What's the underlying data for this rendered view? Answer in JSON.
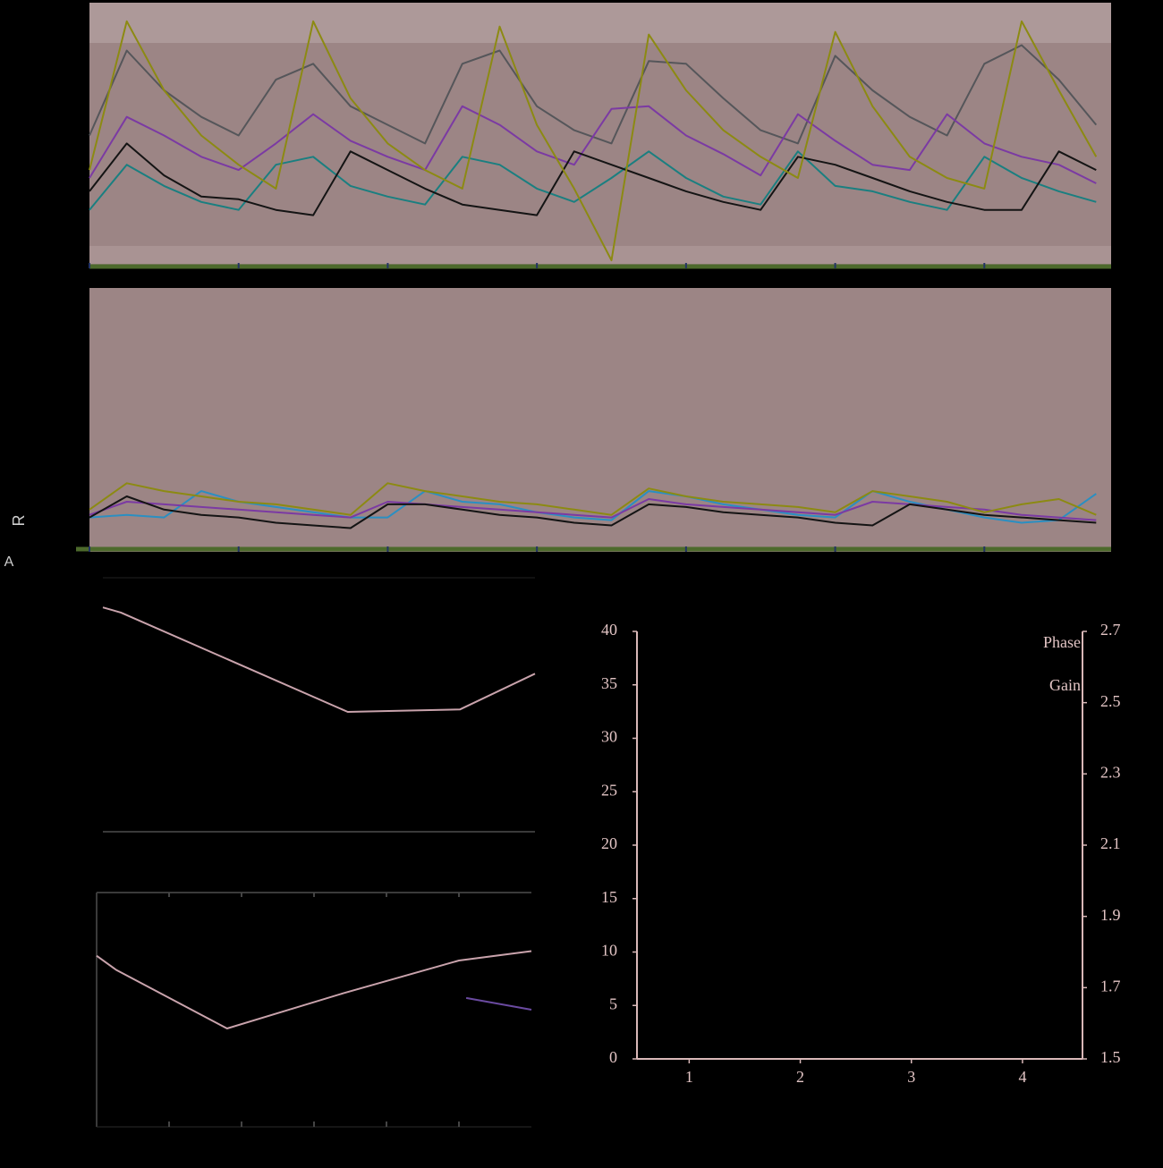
{
  "side_labels": [
    "R",
    "A"
  ],
  "chart_data": [
    {
      "type": "line",
      "xlim": [
        0,
        6.85
      ],
      "ylim": [
        0,
        100
      ],
      "xticks": [
        0,
        1,
        2,
        3,
        4,
        5,
        6
      ],
      "x": [
        0,
        0.25,
        0.5,
        0.75,
        1,
        1.25,
        1.5,
        1.75,
        2,
        2.25,
        2.5,
        2.75,
        3,
        3.25,
        3.5,
        3.75,
        4,
        4.25,
        4.5,
        4.75,
        5,
        5.25,
        5.5,
        5.75,
        6,
        6.25,
        6.5,
        6.75
      ],
      "series": [
        {
          "color": "#55565a",
          "values": [
            50,
            82,
            67,
            57,
            50,
            71,
            77,
            61,
            54,
            47,
            77,
            82,
            61,
            52,
            47,
            78,
            77,
            64,
            52,
            47,
            80,
            67,
            57,
            50,
            77,
            84,
            71,
            54
          ]
        },
        {
          "color": "#7b3aa3",
          "values": [
            34,
            57,
            50,
            42,
            37,
            47,
            58,
            48,
            42,
            37,
            61,
            54,
            44,
            39,
            60,
            61,
            50,
            43,
            35,
            58,
            48,
            39,
            37,
            58,
            47,
            42,
            39,
            32
          ]
        },
        {
          "color": "#1a7f80",
          "values": [
            22,
            39,
            31,
            25,
            22,
            39,
            42,
            31,
            27,
            24,
            42,
            39,
            30,
            25,
            34,
            44,
            34,
            27,
            24,
            44,
            31,
            29,
            25,
            22,
            42,
            34,
            29,
            25
          ]
        },
        {
          "color": "#141414",
          "values": [
            29,
            47,
            35,
            27,
            26,
            22,
            20,
            44,
            37,
            30,
            24,
            22,
            20,
            44,
            39,
            34,
            29,
            25,
            22,
            42,
            39,
            34,
            29,
            25,
            22,
            22,
            44,
            37
          ]
        },
        {
          "color": "#8c8a12",
          "values": [
            37,
            93,
            67,
            50,
            39,
            30,
            93,
            64,
            47,
            37,
            30,
            91,
            54,
            30,
            3,
            88,
            67,
            52,
            42,
            34,
            89,
            61,
            42,
            34,
            30,
            93,
            67,
            42
          ]
        }
      ]
    },
    {
      "type": "line",
      "xlim": [
        0,
        6.85
      ],
      "ylim": [
        0,
        100
      ],
      "xticks": [
        0,
        1,
        2,
        3,
        4,
        5,
        6
      ],
      "x": [
        0,
        0.25,
        0.5,
        0.75,
        1,
        1.25,
        1.5,
        1.75,
        2,
        2.25,
        2.5,
        2.75,
        3,
        3.25,
        3.5,
        3.75,
        4,
        4.25,
        4.5,
        4.75,
        5,
        5.25,
        5.5,
        5.75,
        6,
        6.25,
        6.5,
        6.75
      ],
      "series": [
        {
          "color": "#2a8fc2",
          "values": [
            13,
            14,
            13,
            23,
            19,
            17,
            15,
            13,
            13,
            23,
            19,
            18,
            15,
            13,
            12,
            23,
            21,
            18,
            16,
            14,
            13,
            23,
            19,
            16,
            13,
            11,
            12,
            22
          ]
        },
        {
          "color": "#7b3aa3",
          "values": [
            14,
            19,
            18,
            17,
            16,
            15,
            14,
            13,
            19,
            18,
            17,
            16,
            15,
            14,
            13,
            20,
            18,
            17,
            16,
            15,
            14,
            19,
            18,
            17,
            16,
            14,
            13,
            12
          ]
        },
        {
          "color": "#141414",
          "values": [
            13,
            21,
            16,
            14,
            13,
            11,
            10,
            9,
            18,
            18,
            16,
            14,
            13,
            11,
            10,
            18,
            17,
            15,
            14,
            13,
            11,
            10,
            18,
            16,
            14,
            13,
            12,
            11
          ]
        },
        {
          "color": "#8c8a12",
          "values": [
            16,
            26,
            23,
            21,
            19,
            18,
            16,
            14,
            26,
            23,
            21,
            19,
            18,
            16,
            14,
            24,
            21,
            19,
            18,
            17,
            15,
            23,
            21,
            19,
            15,
            18,
            20,
            14
          ]
        }
      ]
    },
    {
      "type": "line",
      "xlim": [
        0,
        6
      ],
      "ylim": [
        0,
        100
      ],
      "xticks": [],
      "x": [
        0,
        0.25,
        3.4,
        4.96,
        6
      ],
      "series": [
        {
          "color": "#c9a3ac",
          "values": [
            88,
            86,
            47,
            48,
            62
          ]
        }
      ]
    },
    {
      "type": "line",
      "xlim": [
        0,
        6
      ],
      "ylim": [
        0,
        100
      ],
      "xticks": [
        1,
        2,
        3,
        4,
        5
      ],
      "x": [
        0,
        0.27,
        1.8,
        3.4,
        5,
        6
      ],
      "series": [
        {
          "color": "#c9a3ac",
          "values": [
            73,
            67,
            42,
            57,
            71,
            75
          ]
        },
        {
          "color": "#6a4aa0",
          "x": [
            5.1,
            6
          ],
          "values": [
            55,
            50
          ]
        }
      ]
    },
    {
      "type": "line",
      "xlim": [
        0.53,
        4.54
      ],
      "ylim": [
        0,
        40
      ],
      "y2lim": [
        1.5,
        2.7
      ],
      "xticks": [
        1,
        2,
        3,
        4
      ],
      "yticks": [
        0,
        5,
        10,
        15,
        20,
        25,
        30,
        35,
        40
      ],
      "y2ticks": [
        1.5,
        1.7,
        1.9,
        2.1,
        2.3,
        2.5,
        2.7
      ],
      "x": [],
      "series": [
        {
          "name": "Phase",
          "values": []
        },
        {
          "name": "Gain",
          "axis": "y2",
          "values": []
        }
      ]
    }
  ]
}
